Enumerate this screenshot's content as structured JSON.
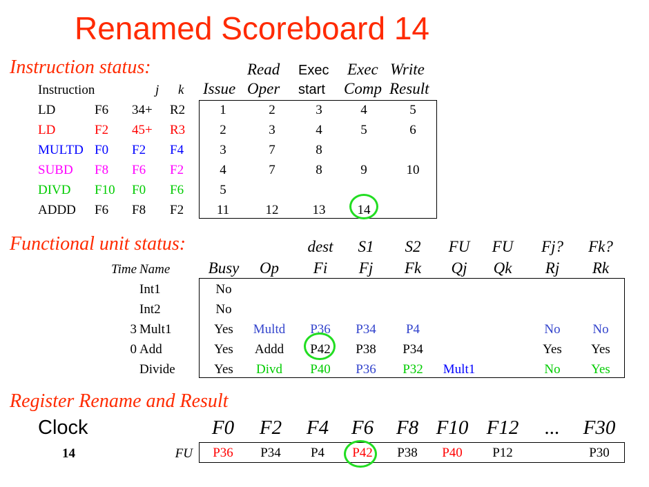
{
  "colors": {
    "red": "#ff0000",
    "blue": "#0000ff",
    "magenta": "#ff00ff",
    "green": "#00cc00",
    "sblue": "#3344cc",
    "title": "#ff2a00",
    "ring": "#22dd22"
  },
  "title": "Renamed Scoreboard 14",
  "instruction_status": {
    "heading": "Instruction status:",
    "col_instruction": "Instruction",
    "col_j": "j",
    "col_k": "k",
    "col_issue": "Issue",
    "col_read_top": "Read",
    "col_read_bot": "Oper",
    "col_exec_top": "Exec",
    "col_exec_bot": "start",
    "col_comp_top": "Exec",
    "col_comp_bot": "Comp",
    "col_write_top": "Write",
    "col_write_bot": "Result",
    "rows": [
      {
        "op": "LD",
        "dest": "F6",
        "j": "34+",
        "k": "R2",
        "issue": "1",
        "read": "2",
        "exec": "3",
        "comp": "4",
        "write": "5"
      },
      {
        "op": "LD",
        "dest": "F2",
        "j": "45+",
        "k": "R3",
        "issue": "2",
        "read": "3",
        "exec": "4",
        "comp": "5",
        "write": "6"
      },
      {
        "op": "MULTD",
        "dest": "F0",
        "j": "F2",
        "k": "F4",
        "issue": "3",
        "read": "7",
        "exec": "8",
        "comp": "",
        "write": ""
      },
      {
        "op": "SUBD",
        "dest": "F8",
        "j": "F6",
        "k": "F2",
        "issue": "4",
        "read": "7",
        "exec": "8",
        "comp": "9",
        "write": "10"
      },
      {
        "op": "DIVD",
        "dest": "F10",
        "j": "F0",
        "k": "F6",
        "issue": "5",
        "read": "",
        "exec": "",
        "comp": "",
        "write": ""
      },
      {
        "op": "ADDD",
        "dest": "F6",
        "j": "F8",
        "k": "F2",
        "issue": "11",
        "read": "12",
        "exec": "13",
        "comp": "14",
        "write": ""
      }
    ]
  },
  "functional_unit_status": {
    "heading": "Functional unit status:",
    "h_dest": "dest",
    "h_s1": "S1",
    "h_s2": "S2",
    "h_fu1": "FU",
    "h_fu2": "FU",
    "h_fjq": "Fj?",
    "h_fkq": "Fk?",
    "h_time": "Time",
    "h_name": "Name",
    "h_busy": "Busy",
    "h_op": "Op",
    "h_fi": "Fi",
    "h_fj": "Fj",
    "h_fk": "Fk",
    "h_qj": "Qj",
    "h_qk": "Qk",
    "h_rj": "Rj",
    "h_rk": "Rk",
    "rows": [
      {
        "time": "",
        "name": "Int1",
        "busy": "No",
        "op": "",
        "fi": "",
        "fj": "",
        "fk": "",
        "qj": "",
        "qk": "",
        "rj": "",
        "rk": ""
      },
      {
        "time": "",
        "name": "Int2",
        "busy": "No",
        "op": "",
        "fi": "",
        "fj": "",
        "fk": "",
        "qj": "",
        "qk": "",
        "rj": "",
        "rk": ""
      },
      {
        "time": "3",
        "name": "Mult1",
        "busy": "Yes",
        "op": "Multd",
        "fi": "P36",
        "fj": "P34",
        "fk": "P4",
        "qj": "",
        "qk": "",
        "rj": "No",
        "rk": "No"
      },
      {
        "time": "0",
        "name": "Add",
        "busy": "Yes",
        "op": "Addd",
        "fi": "P42",
        "fj": "P38",
        "fk": "P34",
        "qj": "",
        "qk": "",
        "rj": "Yes",
        "rk": "Yes"
      },
      {
        "time": "",
        "name": "Divide",
        "busy": "Yes",
        "op": "Divd",
        "fi": "P40",
        "fj": "P36",
        "fk": "P32",
        "qj": "Mult1",
        "qk": "",
        "rj": "No",
        "rk": "Yes"
      }
    ]
  },
  "register_rename": {
    "heading": "Register Rename and Result",
    "clock_label": "Clock",
    "clock_value": "14",
    "fu_label": "FU",
    "registers": [
      "F0",
      "F2",
      "F4",
      "F6",
      "F8",
      "F10",
      "F12",
      "...",
      "F30"
    ],
    "values": [
      "P36",
      "P34",
      "P4",
      "P42",
      "P38",
      "P40",
      "P12",
      "",
      "P30"
    ]
  }
}
